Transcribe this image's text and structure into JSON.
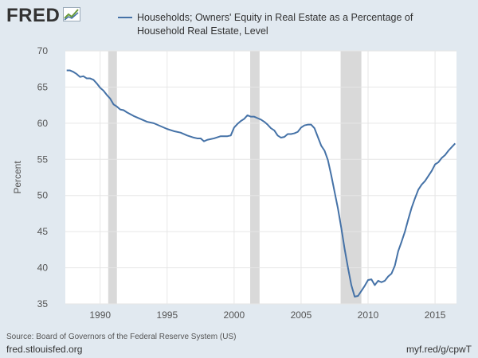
{
  "header": {
    "logo_text": "FRED",
    "logo_icon": "chart-line-icon"
  },
  "chart_data": {
    "type": "line",
    "title": "",
    "xlabel": "",
    "ylabel": "Percent",
    "xlim": [
      1987.4,
      2016.6
    ],
    "ylim": [
      35,
      70
    ],
    "y_ticks": [
      35,
      40,
      45,
      50,
      55,
      60,
      65,
      70
    ],
    "x_ticks": [
      1990,
      1995,
      2000,
      2005,
      2010,
      2015
    ],
    "x_tick_labels": [
      "1990",
      "1995",
      "2000",
      "2005",
      "2010",
      "2015"
    ],
    "grid": true,
    "legend_position": "top",
    "line_color": "#4572a7",
    "recession_color": "#d9d9d9",
    "recessions": [
      [
        1990.6,
        1991.25
      ],
      [
        2001.2,
        2001.9
      ],
      [
        2007.95,
        2009.5
      ]
    ],
    "series": [
      {
        "name": "Households; Owners' Equity in Real Estate as a Percentage of Household Real Estate, Level",
        "x": [
          1987.5,
          1987.75,
          1988.0,
          1988.25,
          1988.5,
          1988.75,
          1989.0,
          1989.25,
          1989.5,
          1989.75,
          1990.0,
          1990.25,
          1990.5,
          1990.75,
          1991.0,
          1991.25,
          1991.5,
          1991.75,
          1992.0,
          1992.5,
          1993.0,
          1993.5,
          1994.0,
          1994.5,
          1995.0,
          1995.5,
          1996.0,
          1996.5,
          1997.0,
          1997.25,
          1997.5,
          1997.75,
          1998.0,
          1998.5,
          1999.0,
          1999.5,
          1999.75,
          2000.0,
          2000.25,
          2000.5,
          2000.75,
          2001.0,
          2001.25,
          2001.5,
          2001.75,
          2002.0,
          2002.25,
          2002.5,
          2002.75,
          2003.0,
          2003.25,
          2003.5,
          2003.75,
          2004.0,
          2004.25,
          2004.5,
          2004.75,
          2005.0,
          2005.25,
          2005.5,
          2005.75,
          2006.0,
          2006.25,
          2006.5,
          2006.75,
          2007.0,
          2007.25,
          2007.5,
          2007.75,
          2008.0,
          2008.25,
          2008.5,
          2008.75,
          2009.0,
          2009.25,
          2009.5,
          2009.75,
          2010.0,
          2010.25,
          2010.5,
          2010.75,
          2011.0,
          2011.25,
          2011.5,
          2011.75,
          2012.0,
          2012.25,
          2012.5,
          2012.75,
          2013.0,
          2013.25,
          2013.5,
          2013.75,
          2014.0,
          2014.25,
          2014.5,
          2014.75,
          2015.0,
          2015.25,
          2015.5,
          2015.75,
          2016.0,
          2016.25,
          2016.5
        ],
        "values": [
          67.3,
          67.3,
          67.1,
          66.8,
          66.4,
          66.5,
          66.2,
          66.2,
          66.0,
          65.5,
          64.9,
          64.5,
          63.9,
          63.4,
          62.6,
          62.3,
          61.9,
          61.8,
          61.5,
          61.0,
          60.6,
          60.2,
          60.0,
          59.6,
          59.2,
          58.9,
          58.7,
          58.3,
          58.0,
          57.9,
          57.9,
          57.5,
          57.7,
          57.9,
          58.2,
          58.2,
          58.3,
          59.4,
          59.9,
          60.3,
          60.6,
          61.1,
          60.9,
          60.9,
          60.7,
          60.5,
          60.2,
          59.8,
          59.3,
          59.0,
          58.3,
          58.0,
          58.1,
          58.5,
          58.5,
          58.6,
          58.8,
          59.4,
          59.7,
          59.8,
          59.8,
          59.3,
          58.1,
          56.9,
          56.2,
          54.9,
          52.8,
          50.5,
          48.2,
          45.5,
          42.6,
          40.0,
          37.6,
          36.0,
          36.1,
          36.8,
          37.5,
          38.3,
          38.4,
          37.6,
          38.2,
          38.0,
          38.2,
          38.8,
          39.2,
          40.3,
          42.3,
          43.6,
          45.0,
          46.7,
          48.3,
          49.6,
          50.8,
          51.5,
          52.0,
          52.7,
          53.4,
          54.3,
          54.6,
          55.2,
          55.6,
          56.2,
          56.7,
          57.2
        ]
      }
    ]
  },
  "footer": {
    "source": "Source: Board of Governors of the Federal Reserve System (US)",
    "site": "fred.stlouisfed.org",
    "short_link": "myf.red/g/cpwT"
  }
}
